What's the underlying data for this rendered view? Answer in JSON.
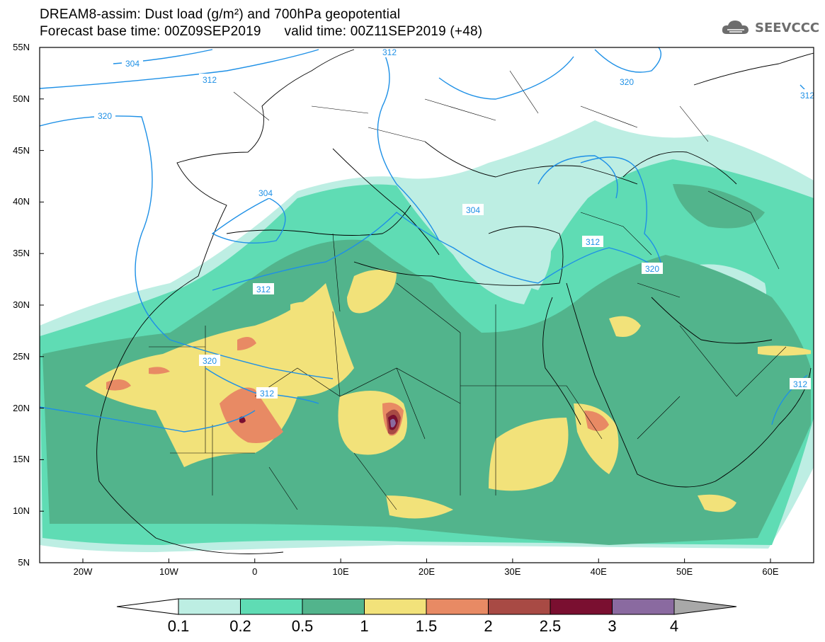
{
  "title": {
    "line1": "DREAM8-assim: Dust load (g/m²) and 700hPa geopotential",
    "line2": "Forecast base time: 00Z09SEP2019      valid time: 00Z11SEP2019 (+48)"
  },
  "logo": {
    "text": "SEEVCCC",
    "icon": "cloud-icon"
  },
  "axes": {
    "y_labels": [
      "55N",
      "50N",
      "45N",
      "40N",
      "35N",
      "30N",
      "25N",
      "20N",
      "15N",
      "10N",
      "5N"
    ],
    "x_labels": [
      "20W",
      "10W",
      "0",
      "10E",
      "20E",
      "30E",
      "40E",
      "50E",
      "60E"
    ]
  },
  "contours": {
    "labels": [
      "304",
      "312",
      "320",
      "304",
      "304",
      "312",
      "320",
      "312",
      "312",
      "320",
      "320",
      "312",
      "312",
      "312"
    ],
    "color": "#1e90e6"
  },
  "colorbar": {
    "levels": [
      "0.1",
      "0.2",
      "0.5",
      "1",
      "1.5",
      "2",
      "2.5",
      "3",
      "4"
    ],
    "colors": [
      "#ffffff",
      "#bdeee3",
      "#5fdcb4",
      "#52b48c",
      "#f2e27a",
      "#e88a64",
      "#a84a44",
      "#7a0f30",
      "#8a6aa0",
      "#a8a8a8"
    ]
  },
  "colors": {
    "c_01": "#bdeee3",
    "c_02": "#5fdcb4",
    "c_05": "#52b48c",
    "c_1": "#f2e27a",
    "c_15": "#e88a64",
    "c_2": "#a84a44",
    "c_25": "#7a0f30",
    "c_3": "#8a6aa0"
  }
}
